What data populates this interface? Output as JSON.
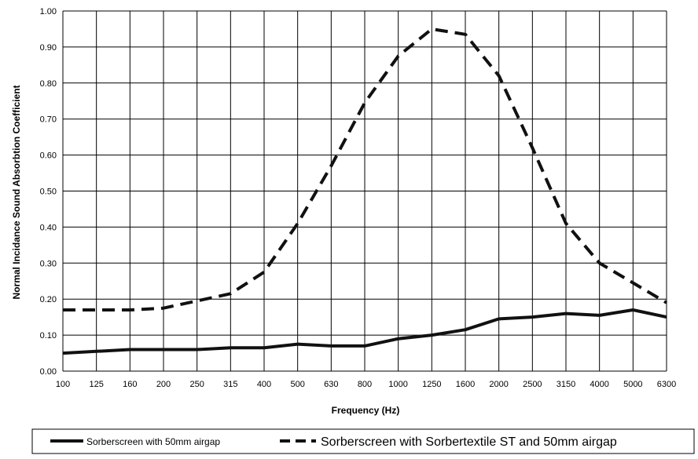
{
  "chart_data": {
    "type": "line",
    "title": "",
    "xlabel": "Frequency  (Hz)",
    "ylabel": "Normal Incidance  Sound Absorbtion  Coefficient",
    "categories": [
      "100",
      "125",
      "160",
      "200",
      "250",
      "315",
      "400",
      "500",
      "630",
      "800",
      "1000",
      "1250",
      "1600",
      "2000",
      "2500",
      "3150",
      "4000",
      "5000",
      "6300"
    ],
    "yticks": [
      "0.00",
      "0.10",
      "0.20",
      "0.30",
      "0.40",
      "0.50",
      "0.60",
      "0.70",
      "0.80",
      "0.90",
      "1.00"
    ],
    "ylim": [
      0,
      1.0
    ],
    "grid": true,
    "legend_position": "bottom",
    "series": [
      {
        "name": "Sorberscreen with 50mm airgap",
        "style": "solid",
        "color": "#111111",
        "values": [
          0.05,
          0.055,
          0.06,
          0.06,
          0.06,
          0.065,
          0.065,
          0.075,
          0.07,
          0.07,
          0.09,
          0.1,
          0.115,
          0.145,
          0.15,
          0.16,
          0.155,
          0.17,
          0.15
        ]
      },
      {
        "name": "Sorberscreen with Sorbertextile ST and 50mm airgap",
        "style": "dashed",
        "color": "#111111",
        "values": [
          0.17,
          0.17,
          0.17,
          0.175,
          0.195,
          0.215,
          0.275,
          0.41,
          0.57,
          0.745,
          0.875,
          0.95,
          0.935,
          0.82,
          0.62,
          0.41,
          0.3,
          0.245,
          0.19
        ]
      }
    ]
  }
}
